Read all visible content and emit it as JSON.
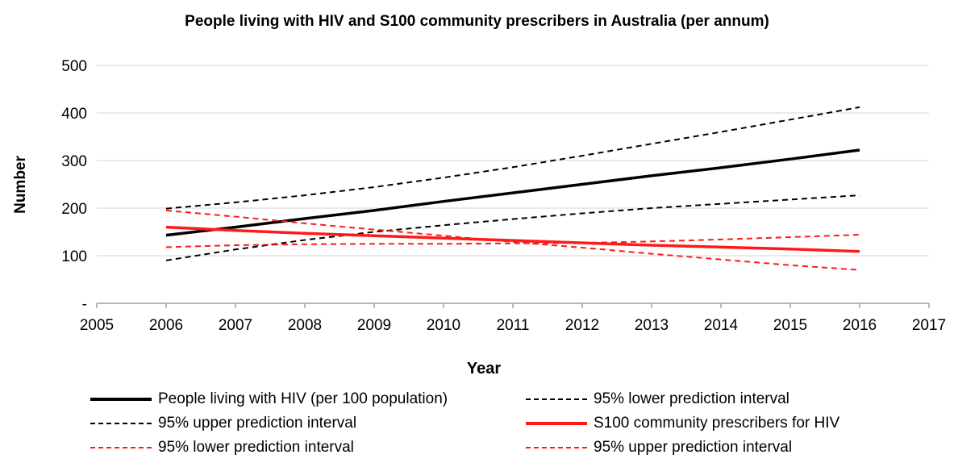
{
  "chart_data": {
    "type": "line",
    "title": "People living with HIV and S100 community prescribers in Australia (per annum)",
    "xlabel": "Year",
    "ylabel": "Number",
    "xlim": [
      2005,
      2017
    ],
    "ylim": [
      0,
      500
    ],
    "x_ticks": [
      "2005",
      "2006",
      "2007",
      "2008",
      "2009",
      "2010",
      "2011",
      "2012",
      "2013",
      "2014",
      "2015",
      "2016",
      "2017"
    ],
    "y_ticks": [
      "-",
      "100",
      "200",
      "300",
      "400",
      "500"
    ],
    "grid": "horizontal",
    "legend_position": "bottom",
    "series": [
      {
        "name": "People living with HIV (per 100 population)",
        "color": "#000000",
        "style": "solid",
        "x": [
          2006,
          2007,
          2008,
          2009,
          2010,
          2011,
          2012,
          2013,
          2014,
          2015,
          2016
        ],
        "y": [
          143,
          160,
          178,
          195,
          214,
          232,
          250,
          268,
          285,
          303,
          322
        ]
      },
      {
        "name": "95% lower prediction interval",
        "color": "#000000",
        "style": "dashed",
        "x": [
          2006,
          2007,
          2008,
          2009,
          2010,
          2011,
          2012,
          2013,
          2014,
          2015,
          2016
        ],
        "y": [
          90,
          113,
          133,
          150,
          164,
          177,
          189,
          200,
          209,
          218,
          227
        ]
      },
      {
        "name": "95% upper prediction interval",
        "color": "#000000",
        "style": "dashed",
        "x": [
          2006,
          2007,
          2008,
          2009,
          2010,
          2011,
          2012,
          2013,
          2014,
          2015,
          2016
        ],
        "y": [
          199,
          212,
          227,
          244,
          264,
          286,
          310,
          335,
          360,
          386,
          412
        ]
      },
      {
        "name": "S100 community prescribers for HIV",
        "color": "#ff1a1a",
        "style": "solid",
        "x": [
          2006,
          2007,
          2008,
          2009,
          2010,
          2011,
          2012,
          2013,
          2014,
          2015,
          2016
        ],
        "y": [
          160,
          153,
          147,
          142,
          137,
          132,
          127,
          122,
          118,
          114,
          109
        ]
      },
      {
        "name": "95% lower prediction interval",
        "color": "#ff1a1a",
        "style": "dashed",
        "x": [
          2006,
          2007,
          2008,
          2009,
          2010,
          2011,
          2012,
          2013,
          2014,
          2015,
          2016
        ],
        "y": [
          195,
          182,
          168,
          155,
          142,
          129,
          117,
          104,
          92,
          80,
          70
        ]
      },
      {
        "name": "95% upper prediction interval",
        "color": "#ff1a1a",
        "style": "dashed",
        "x": [
          2006,
          2007,
          2008,
          2009,
          2010,
          2011,
          2012,
          2013,
          2014,
          2015,
          2016
        ],
        "y": [
          118,
          122,
          124,
          125,
          125,
          126,
          127,
          130,
          134,
          139,
          144
        ]
      }
    ]
  }
}
